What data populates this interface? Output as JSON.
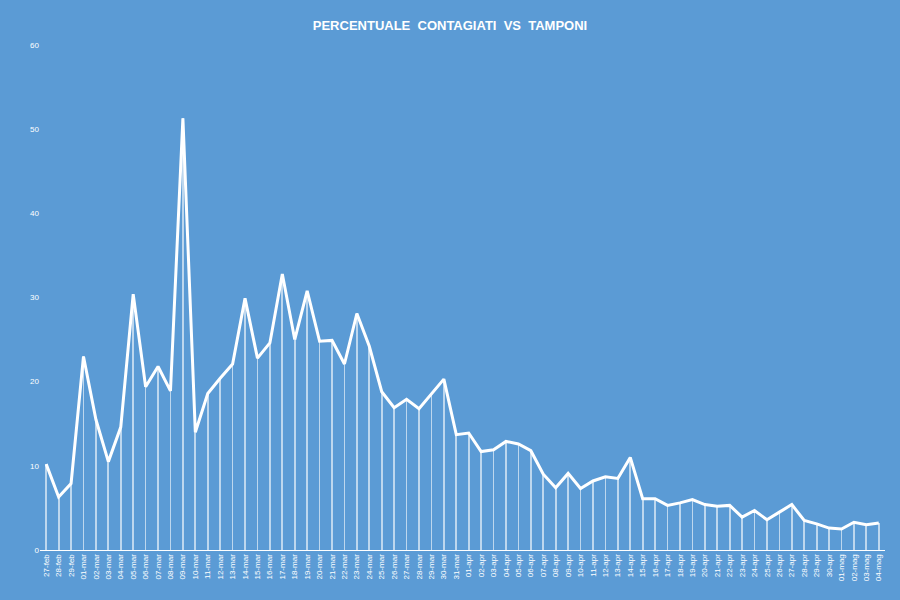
{
  "chart_data": {
    "type": "line",
    "title": "PERCENTUALE  CONTAGIATI  VS  TAMPONI",
    "categories": [
      "27-feb",
      "28-feb",
      "29-feb",
      "01-mar",
      "02-mar",
      "03-mar",
      "04-mar",
      "05-mar",
      "06-mar",
      "07-mar",
      "08-mar",
      "09-mar",
      "10-mar",
      "11-mar",
      "12-mar",
      "13-mar",
      "14-mar",
      "15-mar",
      "16-mar",
      "17-mar",
      "18-mar",
      "19-mar",
      "20-mar",
      "21-mar",
      "22-mar",
      "23-mar",
      "24-mar",
      "25-mar",
      "26-mar",
      "27-mar",
      "28-mar",
      "29-mar",
      "30-mar",
      "31-mar",
      "01-apr",
      "02-apr",
      "03-apr",
      "04-apr",
      "05-apr",
      "06-apr",
      "07-apr",
      "08-apr",
      "09-apr",
      "10-apr",
      "11-apr",
      "12-apr",
      "13-apr",
      "14-apr",
      "15-apr",
      "16-apr",
      "17-apr",
      "18-apr",
      "19-apr",
      "20-apr",
      "21-apr",
      "22-apr",
      "23-apr",
      "24-apr",
      "25-apr",
      "26-apr",
      "27-apr",
      "28-apr",
      "29-apr",
      "30-apr",
      "01-mag",
      "02-mag",
      "03-mag",
      "04-mag"
    ],
    "values": [
      10.2,
      6.3,
      7.9,
      23,
      15.5,
      10.5,
      14.6,
      30.4,
      19.4,
      21.8,
      18.9,
      51.3,
      14,
      18.6,
      20.4,
      22.1,
      29.9,
      22.8,
      24.6,
      32.8,
      25,
      30.8,
      24.8,
      24.9,
      22.1,
      28.1,
      24.2,
      18.8,
      16.9,
      17.9,
      16.8,
      18.6,
      20.3,
      13.7,
      13.9,
      11.7,
      11.9,
      12.9,
      12.6,
      11.8,
      9.0,
      7.4,
      9.1,
      7.3,
      8.2,
      8.7,
      8.5,
      11.0,
      6.1,
      6.1,
      5.3,
      5.6,
      6.0,
      5.4,
      5.2,
      5.3,
      3.9,
      4.7,
      3.6,
      4.5,
      5.4,
      3.5,
      3.1,
      2.6,
      2.5,
      3.3,
      3.0,
      3.2
    ],
    "color": "#ffffff",
    "ylim": [
      0,
      60
    ],
    "yticks": [
      0,
      10,
      20,
      30,
      40,
      50,
      60
    ],
    "grid": false
  }
}
